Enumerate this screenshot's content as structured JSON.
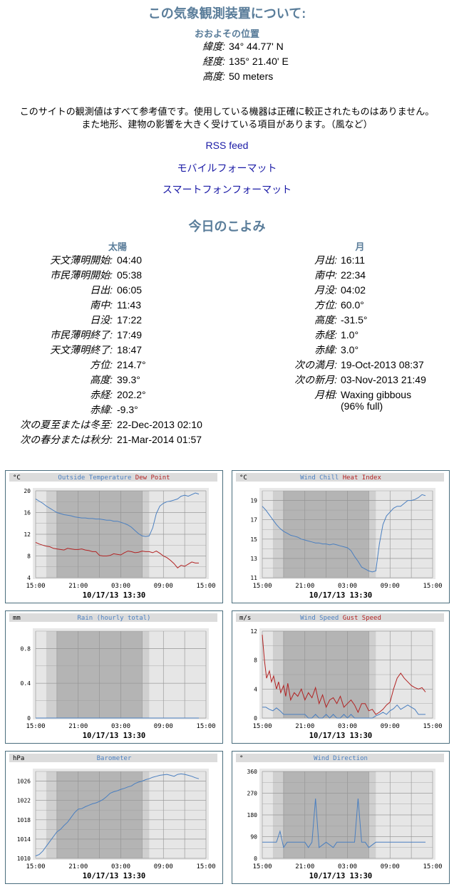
{
  "station": {
    "title": "この気象観測装置について:",
    "location_heading": "おおよその位置",
    "rows": [
      {
        "label": "緯度:",
        "value": "34° 44.77' N"
      },
      {
        "label": "経度:",
        "value": "135° 21.40' E"
      },
      {
        "label": "高度:",
        "value": "50 meters"
      }
    ],
    "note_line1": "このサイトの観測値はすべて参考値です。使用している機器は正確に較正されたものはありません。",
    "note_line2": "また地形、建物の影響を大きく受けている項目があります。（風など）",
    "links": [
      "RSS feed",
      "モバイルフォーマット",
      "スマートフォンフォーマット"
    ]
  },
  "almanac": {
    "title": "今日のこよみ",
    "sun_heading": "太陽",
    "moon_heading": "月",
    "sun": [
      {
        "label": "天文薄明開始:",
        "value": "04:40"
      },
      {
        "label": "市民薄明開始:",
        "value": "05:38"
      },
      {
        "label": "日出:",
        "value": "06:05"
      },
      {
        "label": "南中:",
        "value": "11:43"
      },
      {
        "label": "日没:",
        "value": "17:22"
      },
      {
        "label": "市民薄明終了:",
        "value": "17:49"
      },
      {
        "label": "天文薄明終了:",
        "value": "18:47"
      },
      {
        "label": "方位:",
        "value": "214.7°"
      },
      {
        "label": "高度:",
        "value": "39.3°"
      },
      {
        "label": "赤経:",
        "value": "202.2°"
      },
      {
        "label": "赤緯:",
        "value": "-9.3°"
      },
      {
        "label": "次の夏至または冬至:",
        "value": "22-Dec-2013 02:10"
      },
      {
        "label": "次の春分または秋分:",
        "value": "21-Mar-2014 01:57"
      }
    ],
    "moon": [
      {
        "label": "月出:",
        "value": "16:11"
      },
      {
        "label": "南中:",
        "value": "22:34"
      },
      {
        "label": "月没:",
        "value": "04:02"
      },
      {
        "label": "方位:",
        "value": "60.0°"
      },
      {
        "label": "高度:",
        "value": "-31.5°"
      },
      {
        "label": "赤経:",
        "value": "1.0°"
      },
      {
        "label": "赤緯:",
        "value": "3.0°"
      },
      {
        "label": "次の満月:",
        "value": "19-Oct-2013 08:37"
      },
      {
        "label": "次の新月:",
        "value": "03-Nov-2013 21:49"
      },
      {
        "label": "月相:",
        "value": "Waxing gibbous",
        "value2": "(96% full)"
      }
    ]
  },
  "colors": {
    "heading": "#5a7d9a",
    "link": "#1a1aa6",
    "series_blue": "#4a7fc0",
    "series_red": "#b22222"
  },
  "chart_data": [
    {
      "type": "line",
      "unit_label": "°C",
      "title_parts": [
        {
          "text": "Outside Temperature",
          "color": "blue"
        },
        {
          "text": "Dew Point",
          "color": "red"
        }
      ],
      "ylim": [
        4,
        20
      ],
      "yticks": [
        4,
        8,
        12,
        16,
        20
      ],
      "xlim": [
        0,
        24
      ],
      "xticks": [
        "15:00",
        "21:00",
        "03:00",
        "09:00",
        "15:00"
      ],
      "timestamp": "10/17/13 13:30",
      "series": [
        {
          "name": "Outside Temperature",
          "color": "blue",
          "x": [
            0,
            0.5,
            1,
            1.5,
            2,
            2.5,
            3,
            3.5,
            4,
            4.5,
            5,
            5.5,
            6,
            6.5,
            7,
            7.5,
            8,
            8.5,
            9,
            9.5,
            10,
            10.5,
            11,
            11.5,
            12,
            12.5,
            13,
            13.5,
            14,
            14.5,
            15,
            15.5,
            16,
            16.5,
            17,
            17.5,
            18,
            18.5,
            19,
            19.5,
            20,
            20.5,
            21,
            21.5,
            22,
            22.5,
            23
          ],
          "y": [
            18.5,
            18.1,
            17.7,
            17.2,
            16.8,
            16.4,
            16,
            15.8,
            15.6,
            15.5,
            15.4,
            15.2,
            15.1,
            15,
            15,
            14.9,
            14.9,
            14.8,
            14.8,
            14.7,
            14.6,
            14.6,
            14.4,
            14.4,
            14.2,
            14,
            13.7,
            13.3,
            12.7,
            12.1,
            11.7,
            11.6,
            11.7,
            13.2,
            15.8,
            17.2,
            17.7,
            18,
            18.1,
            18.3,
            18.5,
            19,
            19.2,
            19,
            19.3,
            19.6,
            19.4
          ]
        },
        {
          "name": "Dew Point",
          "color": "red",
          "x": [
            0,
            0.5,
            1,
            1.5,
            2,
            2.5,
            3,
            3.5,
            4,
            4.5,
            5,
            5.5,
            6,
            6.5,
            7,
            7.5,
            8,
            8.5,
            9,
            9.5,
            10,
            10.5,
            11,
            11.5,
            12,
            12.5,
            13,
            13.5,
            14,
            14.5,
            15,
            15.5,
            16,
            16.5,
            17,
            17.5,
            18,
            18.5,
            19,
            19.5,
            20,
            20.5,
            21,
            21.5,
            22,
            22.5,
            23
          ],
          "y": [
            10.5,
            10.2,
            10,
            9.8,
            9.7,
            9.4,
            9.3,
            9.2,
            9.1,
            9.4,
            9.3,
            9.2,
            9.2,
            9.3,
            9.1,
            9,
            8.8,
            8.8,
            8.1,
            8,
            8,
            8.1,
            8.4,
            8.3,
            8.2,
            8.6,
            8.9,
            8.8,
            8.6,
            8.7,
            8.9,
            8.8,
            8.8,
            8.6,
            8.9,
            8.5,
            8,
            7.7,
            7.2,
            6.6,
            5.8,
            6.3,
            6.1,
            6.5,
            6.9,
            6.7,
            6.7
          ]
        }
      ]
    },
    {
      "type": "line",
      "unit_label": "°C",
      "title_parts": [
        {
          "text": "Wind Chill",
          "color": "blue"
        },
        {
          "text": "Heat Index",
          "color": "red"
        }
      ],
      "ylim": [
        11,
        20
      ],
      "yticks": [
        11,
        13,
        15,
        17,
        19
      ],
      "xlim": [
        0,
        24
      ],
      "xticks": [
        "15:00",
        "21:00",
        "03:00",
        "09:00",
        "15:00"
      ],
      "timestamp": "10/17/13 13:30",
      "series": [
        {
          "name": "Wind Chill",
          "color": "blue",
          "x": [
            0,
            0.5,
            1,
            1.5,
            2,
            2.5,
            3,
            3.5,
            4,
            4.5,
            5,
            5.5,
            6,
            6.5,
            7,
            7.5,
            8,
            8.5,
            9,
            9.5,
            10,
            10.5,
            11,
            11.5,
            12,
            12.5,
            13,
            13.5,
            14,
            14.5,
            15,
            15.5,
            16,
            16.5,
            17,
            17.5,
            18,
            18.5,
            19,
            19.5,
            20,
            20.5,
            21,
            21.5,
            22,
            22.5,
            23
          ],
          "y": [
            18.4,
            18,
            17.5,
            17,
            16.5,
            16.1,
            15.8,
            15.6,
            15.4,
            15.3,
            15.2,
            15,
            14.9,
            14.8,
            14.7,
            14.6,
            14.6,
            14.5,
            14.5,
            14.4,
            14.5,
            14.4,
            14.3,
            14.2,
            14.1,
            13.8,
            13.2,
            12.7,
            12.1,
            11.9,
            11.7,
            11.6,
            11.7,
            14.5,
            16.5,
            17.4,
            17.8,
            18.2,
            18.4,
            18.4,
            18.7,
            19,
            19,
            19.1,
            19.3,
            19.6,
            19.5
          ]
        }
      ]
    },
    {
      "type": "line",
      "unit_label": "mm",
      "title_parts": [
        {
          "text": "Rain (hourly total)",
          "color": "blue"
        }
      ],
      "ylim": [
        0,
        1.0
      ],
      "yticks": [
        0.0,
        0.4,
        0.8
      ],
      "xlim": [
        0,
        24
      ],
      "xticks": [
        "15:00",
        "21:00",
        "03:00",
        "09:00",
        "15:00"
      ],
      "timestamp": "10/17/13 13:30",
      "series": [
        {
          "name": "Rain (hourly total)",
          "color": "blue",
          "x": [
            0,
            23
          ],
          "y": [
            0,
            0
          ]
        }
      ]
    },
    {
      "type": "line",
      "unit_label": "m/s",
      "title_parts": [
        {
          "text": "Wind Speed",
          "color": "blue"
        },
        {
          "text": "Gust Speed",
          "color": "red"
        }
      ],
      "ylim": [
        0,
        12
      ],
      "yticks": [
        0,
        4,
        8,
        12
      ],
      "xlim": [
        0,
        24
      ],
      "xticks": [
        "15:00",
        "21:00",
        "03:00",
        "09:00",
        "15:00"
      ],
      "timestamp": "10/17/13 13:30",
      "series": [
        {
          "name": "Wind Speed",
          "color": "blue",
          "x": [
            0,
            0.5,
            1,
            1.5,
            2,
            2.5,
            3,
            3.5,
            4,
            4.5,
            5,
            5.5,
            6,
            6.5,
            7,
            7.5,
            8,
            8.5,
            9,
            9.5,
            10,
            10.5,
            11,
            11.5,
            12,
            12.5,
            13,
            13.5,
            14,
            14.5,
            15,
            15.5,
            16,
            16.5,
            17,
            17.5,
            18,
            18.5,
            19,
            19.5,
            20,
            20.5,
            21,
            21.5,
            22,
            22.5,
            23
          ],
          "y": [
            1.5,
            1.5,
            1.2,
            1,
            1.4,
            1,
            0.5,
            0.5,
            0.5,
            0.5,
            0.5,
            0.5,
            0.5,
            0,
            0,
            0.5,
            0,
            0,
            0.5,
            0,
            0.5,
            0,
            0,
            0.5,
            0,
            0.5,
            0,
            0,
            0,
            0,
            0,
            0,
            0.3,
            0.5,
            0.8,
            0.5,
            1,
            1.3,
            1.8,
            1.2,
            1.5,
            1.8,
            1.5,
            1.2,
            0.5,
            0.5,
            0.5
          ]
        },
        {
          "name": "Gust Speed",
          "color": "red",
          "x": [
            0,
            0.3,
            0.6,
            1,
            1.3,
            1.6,
            2,
            2.3,
            2.6,
            3,
            3.3,
            3.6,
            4,
            4.5,
            5,
            5.5,
            6,
            6.5,
            7,
            7.5,
            8,
            8.5,
            9,
            9.5,
            10,
            10.5,
            11,
            11.5,
            12,
            12.5,
            13,
            13.5,
            14,
            14.5,
            15,
            15.5,
            16,
            16.5,
            17,
            17.5,
            18,
            18.5,
            19,
            19.5,
            20,
            20.5,
            21,
            21.5,
            22,
            22.5,
            23
          ],
          "y": [
            11.5,
            8,
            5.5,
            6.5,
            5,
            5.8,
            4,
            5,
            3.5,
            4.5,
            3,
            4.8,
            2.5,
            3.5,
            3,
            4,
            2.5,
            3.5,
            2.8,
            4.2,
            2,
            3.2,
            1.5,
            2.5,
            2.8,
            2,
            3,
            1.5,
            2,
            2.5,
            1.8,
            0.8,
            2,
            2,
            1,
            1.2,
            0.5,
            0.8,
            1.2,
            1.8,
            2.2,
            4,
            5.5,
            6.2,
            5.5,
            5,
            4.5,
            4.2,
            4,
            4.2,
            3.6
          ]
        }
      ]
    },
    {
      "type": "line",
      "unit_label": "hPa",
      "title_parts": [
        {
          "text": "Barometer",
          "color": "blue"
        }
      ],
      "ylim": [
        1010,
        1028
      ],
      "yticks": [
        1010,
        1014,
        1018,
        1022,
        1026
      ],
      "xlim": [
        0,
        24
      ],
      "xticks": [
        "15:00",
        "21:00",
        "03:00",
        "09:00",
        "15:00"
      ],
      "timestamp": "10/17/13 13:30",
      "series": [
        {
          "name": "Barometer",
          "color": "blue",
          "x": [
            0,
            0.5,
            1,
            1.5,
            2,
            2.5,
            3,
            3.5,
            4,
            4.5,
            5,
            5.5,
            6,
            6.5,
            7,
            7.5,
            8,
            8.5,
            9,
            9.5,
            10,
            10.5,
            11,
            11.5,
            12,
            12.5,
            13,
            13.5,
            14,
            14.5,
            15,
            15.5,
            16,
            16.5,
            17,
            17.5,
            18,
            18.5,
            19,
            19.5,
            20,
            20.5,
            21,
            21.5,
            22,
            22.5,
            23
          ],
          "y": [
            1010.5,
            1010.8,
            1011.5,
            1012.5,
            1013.5,
            1014.5,
            1015.5,
            1016,
            1016.8,
            1017.5,
            1018.5,
            1019.5,
            1020.2,
            1020.3,
            1020.7,
            1021,
            1021.3,
            1021.5,
            1021.8,
            1022.2,
            1022.8,
            1023.5,
            1023.8,
            1024,
            1024.3,
            1024.5,
            1024.8,
            1025,
            1025.5,
            1025.8,
            1026,
            1026.3,
            1026.5,
            1026.8,
            1027,
            1027.2,
            1027.3,
            1027.4,
            1027.2,
            1027,
            1027.4,
            1027.5,
            1027.4,
            1027.2,
            1027,
            1026.7,
            1026.5
          ]
        }
      ]
    },
    {
      "type": "line",
      "unit_label": "°",
      "title_parts": [
        {
          "text": "Wind Direction",
          "color": "blue"
        }
      ],
      "ylim": [
        0,
        360
      ],
      "yticks": [
        0,
        90,
        180,
        270,
        360
      ],
      "xlim": [
        0,
        24
      ],
      "xticks": [
        "15:00",
        "21:00",
        "03:00",
        "09:00",
        "15:00"
      ],
      "timestamp": "10/17/13 13:30",
      "series": [
        {
          "name": "Wind Direction",
          "color": "blue",
          "x": [
            0,
            1,
            2,
            2.5,
            3,
            3.5,
            4,
            5,
            6,
            6.5,
            7,
            7.5,
            8,
            9,
            10,
            10.5,
            11,
            11.5,
            12,
            13,
            13.5,
            14,
            14.5,
            15,
            16,
            18,
            20,
            23
          ],
          "y": [
            67,
            67,
            67,
            112,
            45,
            67,
            67,
            67,
            67,
            45,
            67,
            248,
            45,
            67,
            45,
            67,
            67,
            67,
            67,
            67,
            248,
            67,
            67,
            45,
            67,
            67,
            67,
            67
          ]
        }
      ]
    }
  ]
}
